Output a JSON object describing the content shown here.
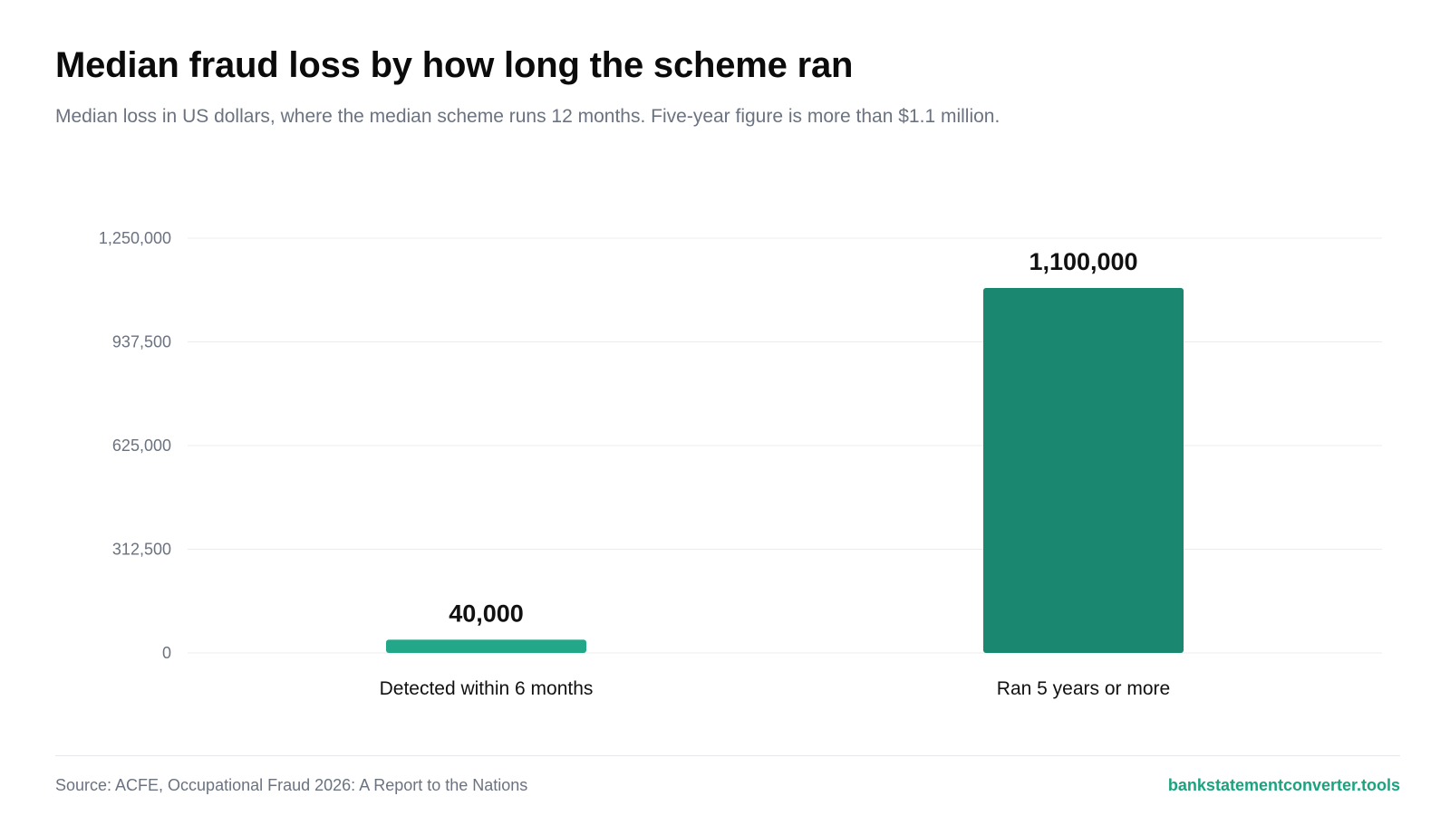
{
  "title": "Median fraud loss by how long the scheme ran",
  "subtitle": "Median loss in US dollars, where the median scheme runs 12 months. Five-year figure is more than $1.1 million.",
  "footer": {
    "source": "Source: ACFE, Occupational Fraud 2026: A Report to the Nations",
    "brand": "bankstatementconverter.tools"
  },
  "colors": {
    "bar_short": "#22a889",
    "bar_long": "#1a8870",
    "brand": "#1aa37f",
    "grid": "#ececec",
    "tick_text": "#6b7280",
    "label_text": "#111111"
  },
  "chart_data": {
    "type": "bar",
    "categories": [
      "Detected within 6 months",
      "Ran 5 years or more"
    ],
    "values": [
      40000,
      1100000
    ],
    "value_labels": [
      "40,000",
      "1,100,000"
    ],
    "ylim": [
      0,
      1250000
    ],
    "yticks": [
      0,
      312500,
      625000,
      937500,
      1250000
    ],
    "ytick_labels": [
      "0",
      "312,500",
      "625,000",
      "937,500",
      "1,250,000"
    ],
    "grid": true,
    "xlabel": "",
    "ylabel": ""
  }
}
